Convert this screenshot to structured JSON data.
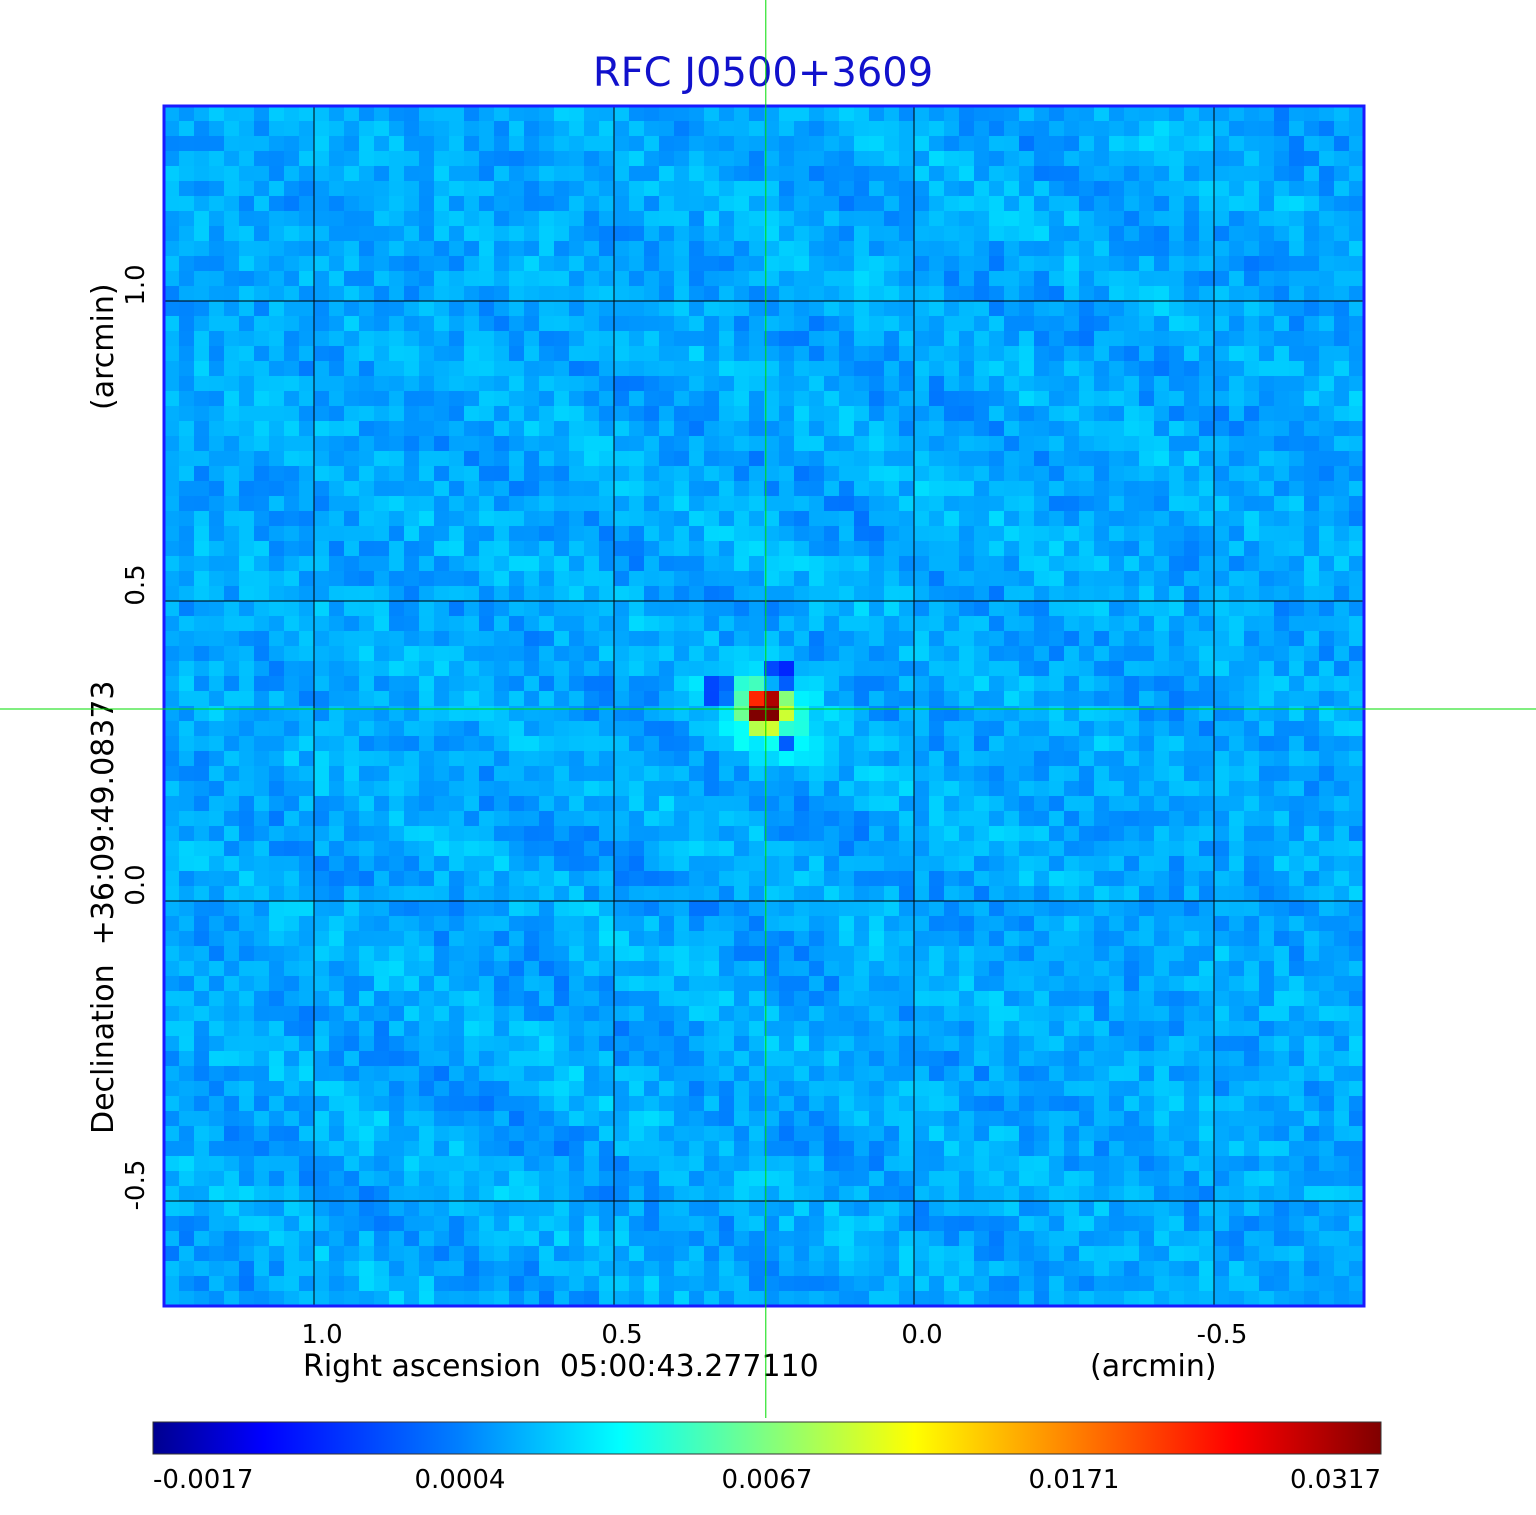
{
  "chart_data": {
    "type": "heatmap",
    "title": "RFC J0500+3609",
    "xlabel": "Right ascension  05:00:43.277110",
    "xunit": "(arcmin)",
    "ylabel": "Declination  +36:09:49.08373",
    "yunit": "(arcmin)",
    "xlim": [
      1.25,
      -0.75
    ],
    "ylim": [
      -0.675,
      1.325
    ],
    "x_ticks": [
      1.0,
      0.5,
      0.0,
      -0.5
    ],
    "x_tick_labels": [
      "1.0",
      "0.5",
      "0.0",
      "-0.5"
    ],
    "y_ticks": [
      -0.5,
      0.0,
      0.5,
      1.0
    ],
    "y_tick_labels": [
      "-0.5",
      "0.0",
      "0.5",
      "1.0"
    ],
    "grid": true,
    "crosshair": {
      "x": 0.247,
      "y": 0.32
    },
    "peak": {
      "x": 0.247,
      "y": 0.32,
      "value": 0.0317
    },
    "colorbar": {
      "colormap": "jet",
      "scale": "nonlinear",
      "tick_labels": [
        "-0.0017",
        "0.0004",
        "0.0067",
        "0.0171",
        "0.0317"
      ]
    },
    "colors": {
      "title": "#1111cc",
      "frame": "#1a1aff",
      "grid": "#000000",
      "crosshair": "#00dd00",
      "background": "#1f82f0"
    }
  }
}
